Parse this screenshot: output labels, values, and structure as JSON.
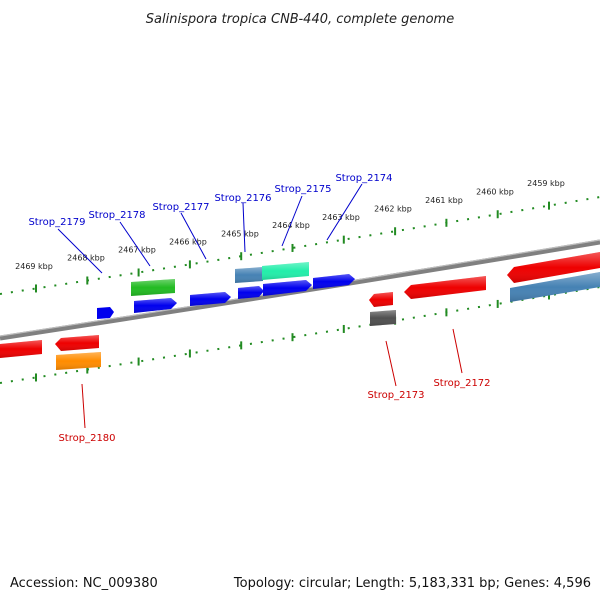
{
  "map": {
    "title": "Salinispora tropica CNB-440, complete genome",
    "accession_text": "Accession: NC_009380",
    "summary_text": "Topology: circular; Length: 5,183,331 bp; Genes: 4,596",
    "kbp_ticks": [
      "2469 kbp",
      "2468 kbp",
      "2467 kbp",
      "2466 kbp",
      "2465 kbp",
      "2464 kbp",
      "2463 kbp",
      "2462 kbp",
      "2461 kbp",
      "2460 kbp",
      "2459 kbp"
    ],
    "upper_labels": [
      "Strop_2179",
      "Strop_2178",
      "Strop_2177",
      "Strop_2176",
      "Strop_2175",
      "Strop_2174"
    ],
    "lower_labels": [
      "Strop_2180",
      "Strop_2173",
      "Strop_2172"
    ],
    "colors": {
      "forward_label": "#0000cc",
      "reverse_label": "#cc0000",
      "backbone": "#808080",
      "tick_green": "#228b22",
      "blue_gene": "#0000ee",
      "red_gene": "#ee0000",
      "green_gene": "#22bb22",
      "orange_gene": "#ff8c00",
      "steel_gene": "#4682b4",
      "aqua_gene": "#22eeaa",
      "gray_gene": "#505050"
    }
  }
}
